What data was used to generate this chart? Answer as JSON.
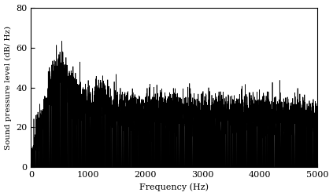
{
  "xlabel": "Frequency (Hz)",
  "ylabel": "Sound pressure level (dB/ Hz)",
  "xlim": [
    0,
    5000
  ],
  "ylim": [
    0,
    80
  ],
  "xticks": [
    0,
    1000,
    2000,
    3000,
    4000,
    5000
  ],
  "yticks": [
    0,
    20,
    40,
    60,
    80
  ],
  "line_color": "#000000",
  "background_color": "#ffffff",
  "linewidth": 0.5,
  "seed": 17,
  "n_points": 4096,
  "sample_rate": 10000
}
